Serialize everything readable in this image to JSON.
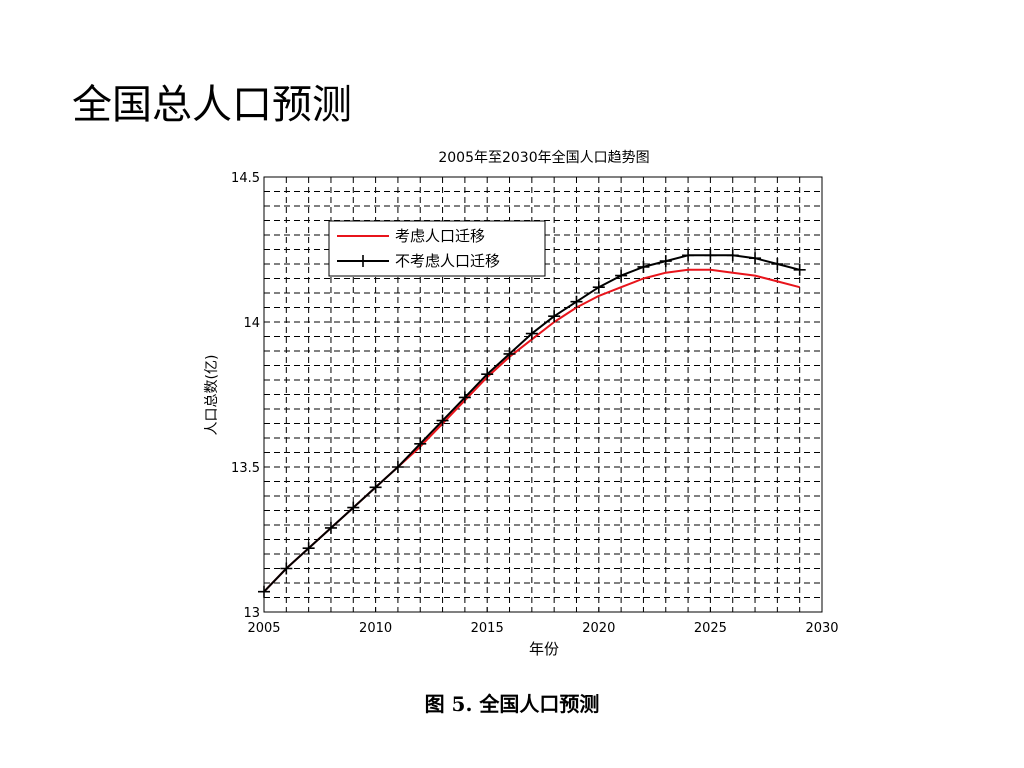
{
  "slide": {
    "title": "全国总人口预测",
    "caption": "图 5. 全国人口预测"
  },
  "chart_data": {
    "type": "line",
    "title": "2005年至2030年全国人口趋势图",
    "xlabel": "年份",
    "ylabel": "人口总数(亿)",
    "xlim": [
      2005,
      2030
    ],
    "ylim": [
      13,
      14.5
    ],
    "xticks": [
      2005,
      2010,
      2015,
      2020,
      2025,
      2030
    ],
    "yticks": [
      13,
      13.5,
      14,
      14.5
    ],
    "grid": true,
    "legend": "top-left",
    "x": [
      2005,
      2006,
      2007,
      2008,
      2009,
      2010,
      2011,
      2012,
      2013,
      2014,
      2015,
      2016,
      2017,
      2018,
      2019,
      2020,
      2021,
      2022,
      2023,
      2024,
      2025,
      2026,
      2027,
      2028,
      2029
    ],
    "series": [
      {
        "name": "考虑人口迁移",
        "color": "#e8141b",
        "marker": "none",
        "values": [
          13.07,
          13.15,
          13.22,
          13.29,
          13.36,
          13.43,
          13.5,
          13.57,
          13.65,
          13.73,
          13.81,
          13.88,
          13.94,
          14.0,
          14.05,
          14.09,
          14.12,
          14.15,
          14.17,
          14.18,
          14.18,
          14.17,
          14.16,
          14.14,
          14.12
        ]
      },
      {
        "name": "不考虑人口迁移",
        "color": "#000000",
        "marker": "plus",
        "values": [
          13.07,
          13.15,
          13.22,
          13.29,
          13.36,
          13.43,
          13.5,
          13.58,
          13.66,
          13.74,
          13.82,
          13.89,
          13.96,
          14.02,
          14.07,
          14.12,
          14.16,
          14.19,
          14.21,
          14.23,
          14.23,
          14.23,
          14.22,
          14.2,
          14.18
        ]
      }
    ]
  }
}
